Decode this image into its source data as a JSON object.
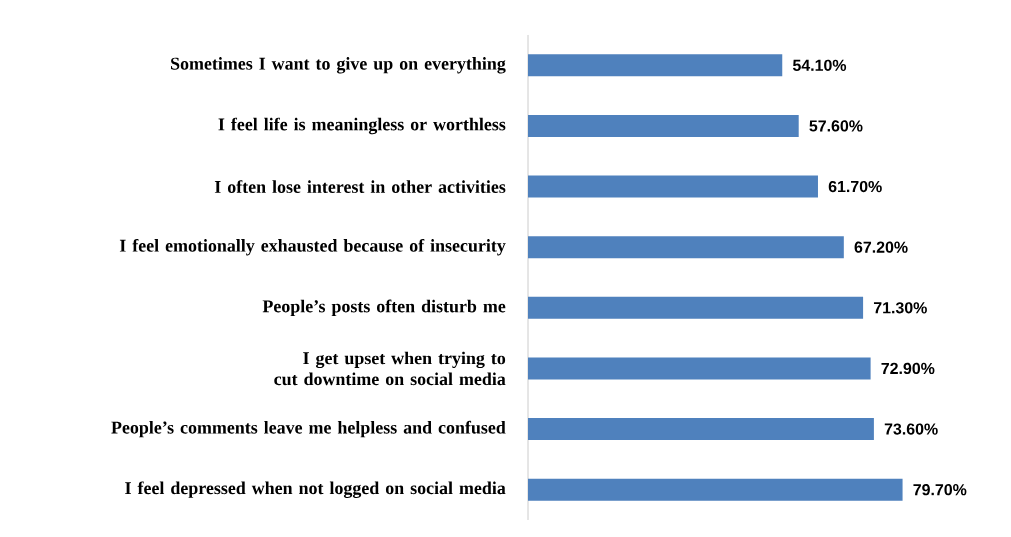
{
  "chart_data": {
    "type": "bar",
    "orientation": "horizontal",
    "categories": [
      "Sometimes I want to give up on everything",
      "I feel life is meaningless or worthless",
      "I often lose interest in other activities",
      "I feel emotionally exhausted because of insecurity",
      "People’s posts often disturb me",
      "I get upset when trying to cut downtime on social media",
      "People’s comments leave me helpless and confused",
      "I feel depressed when not logged on social media"
    ],
    "values": [
      54.1,
      57.6,
      61.7,
      67.2,
      71.3,
      72.9,
      73.6,
      79.7
    ],
    "value_labels": [
      "54.10%",
      "57.60%",
      "61.70%",
      "67.20%",
      "71.30%",
      "72.90%",
      "73.60%",
      "79.70%"
    ],
    "color": "#4f81bd"
  }
}
